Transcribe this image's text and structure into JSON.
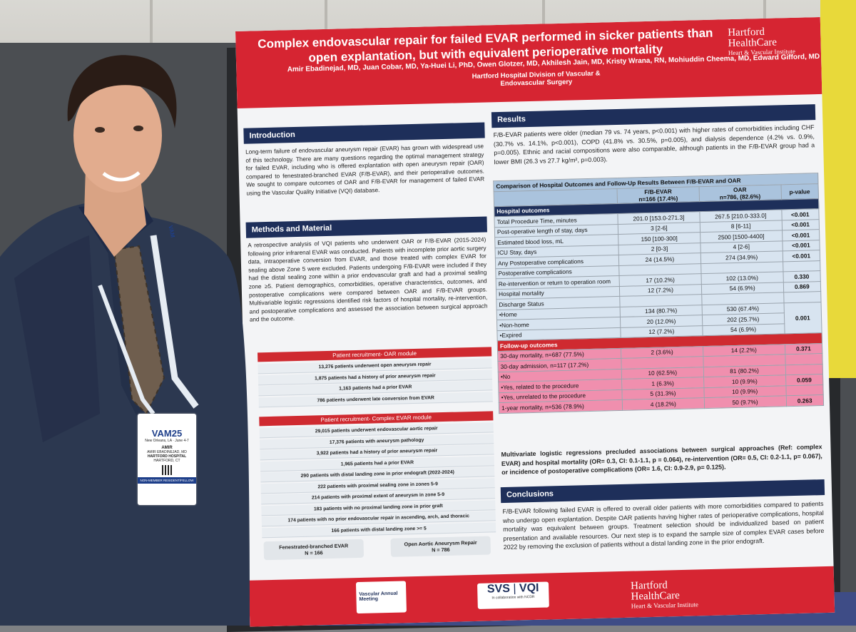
{
  "poster": {
    "title": "Complex endovascular repair for failed EVAR performed in sicker patients than open explantation, but with equivalent perioperative mortality",
    "authors": "Amir Ebadinejad, MD, Juan Cobar, MD, Ya-Huei Li, PhD, Owen Glotzer, MD, Akhilesh Jain, MD, Kristy Wrana, RN, Mohiuddin Cheema, MD, Edward Gifford, MD",
    "affiliation": "Hartford Hospital Division of Vascular & Endovascular Surgery",
    "logo_line1": "Hartford",
    "logo_line2": "HealthCare",
    "logo_line3": "Heart & Vascular Institute",
    "intro_heading": "Introduction",
    "intro_text": "Long-term failure of endovascular aneurysm repair (EVAR) has grown with widespread use of this technology. There are many questions regarding the optimal management strategy for failed EVAR, including who is offered explantation with open aneurysm repair (OAR) compared to fenestrated-branched EVAR (F/B-EVAR), and their perioperative outcomes. We sought to compare outcomes of OAR and F/B-EVAR for management of failed EVAR using the Vascular Quality Initiative (VQI) database.",
    "methods_heading": "Methods and Material",
    "methods_text": "A retrospective analysis of VQI patients who underwent OAR or F/B-EVAR (2015-2024) following prior infrarenal EVAR was conducted. Patients with incomplete prior aortic surgery data, intraoperative conversion from EVAR, and those treated with complex EVAR for sealing above Zone 5 were excluded. Patients undergoing F/B-EVAR were included if they had the distal sealing zone within a prior endovascular graft and had a proximal sealing zone ≥5. Patient demographics, comorbidities, operative characteristics, outcomes, and postoperative complications were compared between OAR and F/B-EVAR groups. Multivariable logistic regressions identified risk factors of hospital mortality, re-intervention, and postoperative complications and assessed the association between surgical approach and the outcome.",
    "oar_module_title": "Patient recruitment- OAR module",
    "oar_steps": [
      "13,276 patients underwent open aneurysm repair",
      "1,875 patients had a history of prior aneurysm repair",
      "1,163 patients had a prior EVAR",
      "786 patients underwent late conversion from EVAR"
    ],
    "evar_module_title": "Patient recruitment- Complex EVAR module",
    "evar_steps": [
      "29,015 patients underwent endovascular aortic repair",
      "17,376 patients with aneurysm pathology",
      "3,922 patients had a history of prior aneurysm repair",
      "1,965 patients had a prior EVAR",
      "290 patients with distal landing zone in prior endograft (2022-2024)",
      "222 patients with proximal sealing zone in zones 5-9",
      "214 patients with proximal extent of aneurysm in zone 5-9",
      "183 patients with no proximal landing zone in prior graft",
      "174 patients with no prior endovascular repair in ascending, arch, and thoracic",
      "166 patients with distal landing zone >= 5"
    ],
    "final_fb_label": "Fenestrated-branched EVAR",
    "final_fb_n": "N = 166",
    "final_oar_label": "Open Aortic Aneurysm Repair",
    "final_oar_n": "N = 786",
    "results_heading": "Results",
    "results_text": "F/B-EVAR patients were older (median 79 vs. 74 years, p<0.001) with higher rates of comorbidities including CHF (30.7% vs. 14.1%, p<0.001), COPD (41.8% vs. 30.5%, p=0.005), and dialysis dependence (4.2% vs. 0.9%, p=0.005). Ethnic and racial compositions were also comparable, although patients in the F/B-EVAR group had a lower BMI (26.3 vs 27.7 kg/m², p=0.003).",
    "table_title": "Comparison of Hospital Outcomes and Follow-Up Results Between F/B-EVAR and OAR",
    "col_fb": "F/B-EVAR",
    "col_fb_n": "n=166 (17.4%)",
    "col_oar": "OAR",
    "col_oar_n": "n=786, (82.6%)",
    "col_p": "p-value",
    "hospital_outcomes_label": "Hospital outcomes",
    "hospital_rows": [
      [
        "Total Procedure Time, minutes",
        "201.0 [153.0-271.3]",
        "267.5 [210.0-333.0]",
        "<0.001"
      ],
      [
        "Post-operative length of stay, days",
        "3 [2-6]",
        "8 [6-11]",
        "<0.001"
      ],
      [
        "Estimated blood loss, mL",
        "150 [100-300]",
        "2500 [1500-4400]",
        "<0.001"
      ],
      [
        "ICU Stay, days",
        "2 [0-3]",
        "4 [2-6]",
        "<0.001"
      ],
      [
        "Any Postoperative complications",
        "24 (14.5%)",
        "274 (34.9%)",
        "<0.001"
      ],
      [
        "Postoperative complications",
        "",
        "",
        ""
      ],
      [
        "Re-intervention or return to operation room",
        "17 (10.2%)",
        "102 (13.0%)",
        "0.330"
      ],
      [
        "Hospital mortality",
        "12 (7.2%)",
        "54 (6.9%)",
        "0.869"
      ],
      [
        "Discharge Status",
        "",
        "",
        ""
      ]
    ],
    "discharge_rows": [
      [
        "•Home",
        "134 (80.7%)",
        "530 (67.4%)"
      ],
      [
        "•Non-home",
        "20 (12.0%)",
        "202 (25.7%)"
      ],
      [
        "•Expired",
        "12 (7.2%)",
        "54 (6.9%)"
      ]
    ],
    "discharge_p": "0.001",
    "followup_label": "Follow-up outcomes",
    "followup_rows": [
      [
        "30-day mortality, n=687 (77.5%)",
        "2 (3.6%)",
        "14 (2.2%)",
        "0.371"
      ],
      [
        "30-day admission, n=117 (17.2%)",
        "",
        "",
        ""
      ],
      [
        "•No",
        "10 (62.5%)",
        "81 (80.2%)",
        ""
      ],
      [
        "•Yes, related to the procedure",
        "1 (6.3%)",
        "10 (9.9%)",
        "0.059"
      ],
      [
        "•Yes, unrelated to the procedure",
        "5 (31.3%)",
        "10 (9.9%)",
        ""
      ],
      [
        "1-year mortality, n=536 (78.9%)",
        "4 (18.2%)",
        "50 (9.7%)",
        "0.263"
      ]
    ],
    "regression_text": "Multivariate logistic regressions precluded associations between surgical approaches (Ref: complex EVAR) and hospital mortality (OR= 0.3, CI: 0.1-1.1, p = 0.064), re-intervention (OR= 0.5, CI: 0.2-1.1, p= 0.067), or incidence of postoperative complications (OR= 1.6, CI: 0.9-2.9, p= 0.125).",
    "conclusions_heading": "Conclusions",
    "conclusions_text": "F/B-EVAR following failed EVAR is offered to overall older patients with more comorbidities compared to patients who undergo open explantation. Despite OAR patients having higher rates of perioperative complications, hospital mortality was equivalent between groups. Treatment selection should be individualized based on patient presentation and available resources. Our next step is to expand the sample size of complex EVAR cases before 2022 by removing the exclusion of patients without a distal landing zone in the prior endograft.",
    "footer_vam": "Vascular Annual Meeting",
    "footer_svs": "SVS",
    "footer_vqi": "VQI",
    "footer_vqi_sub": "In collaboration with NCDR"
  },
  "badge": {
    "event": "VAM25",
    "location": "New Orleans, LA · June 4-7",
    "first_name": "AMIR",
    "full_name": "AMIR EBADINEJAD, MD",
    "org": "HARTFORD HOSPITAL",
    "city": "HARTFORD, CT",
    "category": "NON-MEMBER RESIDENT/FELLOW"
  },
  "lanyard_text": "VAM",
  "colors": {
    "poster_red": "#d62532",
    "poster_navy": "#1e2f5a",
    "table_header_blue": "#aac3dd",
    "followup_pink": "#f08fae",
    "suit": "#2c3850"
  }
}
